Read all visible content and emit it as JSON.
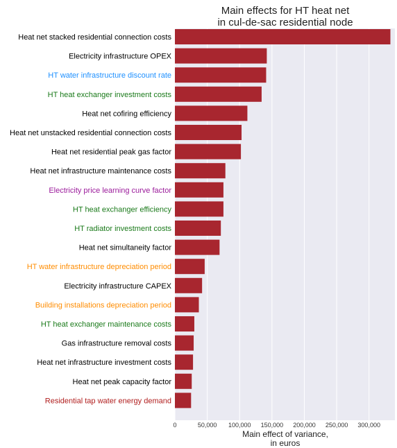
{
  "chart_data": {
    "type": "bar",
    "orientation": "horizontal",
    "title_lines": [
      "Main effects for HT heat net",
      "in cul-de-sac residential node"
    ],
    "xlabel_lines": [
      "Main effect of variance,",
      "in euros"
    ],
    "ylabel": "",
    "xlim": [
      0,
      340000
    ],
    "xticks": [
      0,
      50000,
      100000,
      150000,
      200000,
      250000,
      300000
    ],
    "xtick_labels": [
      "0",
      "50,000",
      "100,000",
      "150,000",
      "200,000",
      "250,000",
      "300,000"
    ],
    "grid": true,
    "bar_color": "#a8262f",
    "plot_background": "#eaeaf2",
    "categories": [
      "Heat net stacked residential connection costs",
      "Electricity infrastructure OPEX",
      "HT water infrastructure discount rate",
      "HT heat exchanger investment costs",
      "Heat net cofiring efficiency",
      "Heat net unstacked residential connection costs",
      "Heat net residential peak gas factor",
      "Heat net infrastructure maintenance costs",
      "Electricity price learning curve factor",
      "HT heat exchanger efficiency",
      "HT radiator investment costs",
      "Heat net simultaneity factor",
      "HT water infrastructure depreciation period",
      "Electricity infrastructure CAPEX",
      "Building installations depreciation period",
      "HT heat exchanger maintenance costs",
      "Gas infrastructure removal costs",
      "Heat net infrastructure investment costs",
      "Heat net peak capacity factor",
      "Residential tap water energy demand"
    ],
    "values": [
      333000,
      142000,
      141000,
      134000,
      112000,
      103000,
      102000,
      78000,
      75000,
      75000,
      71000,
      69000,
      46000,
      42000,
      37000,
      30000,
      29000,
      28000,
      26000,
      25000
    ],
    "label_colors": [
      "#000000",
      "#000000",
      "#1e90ff",
      "#1a7a1a",
      "#000000",
      "#000000",
      "#000000",
      "#000000",
      "#9b1b9b",
      "#1a7a1a",
      "#1a7a1a",
      "#000000",
      "#ff8c00",
      "#000000",
      "#ff8c00",
      "#1a7a1a",
      "#000000",
      "#000000",
      "#000000",
      "#b01c1c"
    ]
  }
}
